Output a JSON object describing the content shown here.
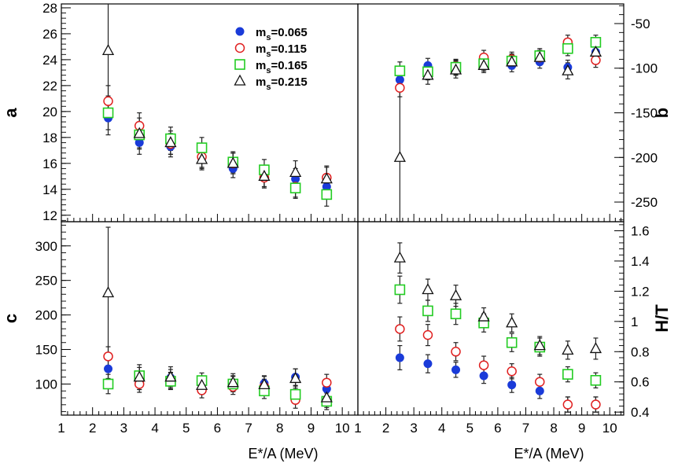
{
  "chart_data": [
    {
      "panel": "top-left",
      "type": "scatter",
      "ylabel": "a",
      "xlim": [
        1,
        10.5
      ],
      "ylim": [
        11.5,
        28.3
      ],
      "yticks": [
        12,
        14,
        16,
        18,
        20,
        22,
        24,
        26,
        28
      ],
      "yaxis_side": "left",
      "legend_position": "top-right",
      "x": [
        2.5,
        3.5,
        4.5,
        5.5,
        6.5,
        7.5,
        8.5,
        9.5
      ],
      "series": [
        {
          "name": "m_s=0.065",
          "label": "m",
          "sub": "s",
          "value": "=0.065",
          "marker": "filled-circle",
          "color": "#1a3bd9",
          "values": [
            19.5,
            17.6,
            17.3,
            16.4,
            15.6,
            14.9,
            14.8,
            14.2
          ],
          "errors": [
            1.3,
            0.9,
            0.8,
            0.8,
            0.7,
            0.7,
            0.8,
            0.8
          ]
        },
        {
          "name": "m_s=0.115",
          "label": "m",
          "sub": "s",
          "value": "=0.115",
          "marker": "open-circle",
          "color": "#e02020",
          "values": [
            20.8,
            18.9,
            17.5,
            16.5,
            16.0,
            14.9,
            14.2,
            14.9
          ],
          "errors": [
            1.2,
            1.0,
            0.8,
            0.8,
            0.8,
            0.8,
            0.8,
            0.9
          ]
        },
        {
          "name": "m_s=0.165",
          "label": "m",
          "sub": "s",
          "value": "=0.165",
          "marker": "open-square",
          "color": "#22cc22",
          "values": [
            19.9,
            18.2,
            17.9,
            17.2,
            16.1,
            15.5,
            14.1,
            13.6
          ],
          "errors": [
            1.3,
            1.0,
            0.9,
            0.8,
            0.8,
            0.8,
            0.8,
            0.9
          ]
        },
        {
          "name": "m_s=0.215",
          "label": "m",
          "sub": "s",
          "value": "=0.215",
          "marker": "open-triangle",
          "color": "#111111",
          "values": [
            24.7,
            18.3,
            17.6,
            16.3,
            16.0,
            15.0,
            15.3,
            14.8
          ],
          "errors": [
            3.6,
            1.2,
            0.9,
            0.8,
            0.8,
            0.8,
            0.9,
            0.9
          ]
        }
      ]
    },
    {
      "panel": "top-right",
      "type": "scatter",
      "ylabel": "b",
      "xlim": [
        1,
        10.5
      ],
      "ylim": [
        -272,
        -28
      ],
      "yticks": [
        -250,
        -200,
        -150,
        -100,
        -50
      ],
      "yaxis_side": "right",
      "x": [
        2.5,
        3.5,
        4.5,
        5.5,
        6.5,
        7.5,
        8.5,
        9.5
      ],
      "series": [
        {
          "name": "m_s=0.065",
          "marker": "filled-circle",
          "color": "#1a3bd9",
          "values": [
            -113,
            -97,
            -100,
            -95,
            -97,
            -93,
            -99,
            -82
          ],
          "errors": [
            10,
            8,
            8,
            8,
            7,
            7,
            8,
            8
          ]
        },
        {
          "name": "m_s=0.115",
          "marker": "open-circle",
          "color": "#e02020",
          "values": [
            -122,
            -105,
            -98,
            -88,
            -90,
            -88,
            -71,
            -91
          ],
          "errors": [
            10,
            8,
            8,
            8,
            8,
            8,
            8,
            8
          ]
        },
        {
          "name": "m_s=0.165",
          "marker": "open-square",
          "color": "#22cc22",
          "values": [
            -103,
            -104,
            -99,
            -95,
            -92,
            -86,
            -78,
            -71
          ],
          "errors": [
            10,
            9,
            8,
            8,
            8,
            8,
            8,
            8
          ]
        },
        {
          "name": "m_s=0.215",
          "marker": "open-triangle",
          "color": "#111111",
          "values": [
            -200,
            -108,
            -102,
            -97,
            -93,
            -88,
            -103,
            -82
          ],
          "errors": [
            75,
            10,
            9,
            8,
            8,
            8,
            9,
            9
          ]
        }
      ]
    },
    {
      "panel": "bottom-left",
      "type": "scatter",
      "ylabel": "c",
      "xlabel": "E*/A (MeV)",
      "xlim": [
        1,
        10.5
      ],
      "xticks": [
        1,
        2,
        3,
        4,
        5,
        6,
        7,
        8,
        9,
        10
      ],
      "ylim": [
        55,
        335
      ],
      "yticks": [
        100,
        150,
        200,
        250,
        300
      ],
      "yaxis_side": "left",
      "x": [
        2.5,
        3.5,
        4.5,
        5.5,
        6.5,
        7.5,
        8.5,
        9.5
      ],
      "series": [
        {
          "name": "m_s=0.065",
          "marker": "filled-circle",
          "color": "#1a3bd9",
          "values": [
            122,
            104,
            109,
            100,
            101,
            101,
            110,
            93
          ],
          "errors": [
            14,
            12,
            12,
            11,
            11,
            11,
            12,
            12
          ]
        },
        {
          "name": "m_s=0.115",
          "marker": "open-circle",
          "color": "#e02020",
          "values": [
            140,
            100,
            105,
            91,
            96,
            96,
            77,
            102
          ],
          "errors": [
            14,
            12,
            12,
            11,
            11,
            11,
            12,
            12
          ]
        },
        {
          "name": "m_s=0.165",
          "marker": "open-square",
          "color": "#22cc22",
          "values": [
            100,
            112,
            104,
            105,
            100,
            90,
            85,
            75
          ],
          "errors": [
            14,
            12,
            12,
            11,
            11,
            11,
            12,
            12
          ]
        },
        {
          "name": "m_s=0.215",
          "marker": "open-triangle",
          "color": "#111111",
          "values": [
            232,
            110,
            110,
            98,
            102,
            99,
            108,
            80
          ],
          "errors": [
            95,
            18,
            15,
            13,
            13,
            12,
            14,
            14
          ]
        }
      ]
    },
    {
      "panel": "bottom-right",
      "type": "scatter",
      "ylabel": "H/T",
      "xlabel": "E*/A (MeV)",
      "xlim": [
        1,
        10.5
      ],
      "xticks": [
        1,
        2,
        3,
        4,
        5,
        6,
        7,
        8,
        9,
        10
      ],
      "ylim": [
        0.38,
        1.66
      ],
      "yticks": [
        0.4,
        0.6,
        0.8,
        1.0,
        1.2,
        1.4,
        1.6
      ],
      "ytick_labels": [
        "0.4",
        "0.6",
        "0.8",
        "1",
        "1.2",
        "1.4",
        "1.6"
      ],
      "yaxis_side": "right",
      "x": [
        2.5,
        3.5,
        4.5,
        5.5,
        6.5,
        7.5,
        8.5,
        9.5
      ],
      "series": [
        {
          "name": "m_s=0.065",
          "marker": "filled-circle",
          "color": "#1a3bd9",
          "values": [
            0.76,
            0.72,
            0.68,
            0.64,
            0.58,
            0.54,
            0.45,
            0.45
          ],
          "errors": [
            0.08,
            0.06,
            0.05,
            0.05,
            0.05,
            0.05,
            0.05,
            0.05
          ]
        },
        {
          "name": "m_s=0.115",
          "marker": "open-circle",
          "color": "#e02020",
          "values": [
            0.95,
            0.91,
            0.8,
            0.71,
            0.67,
            0.6,
            0.45,
            0.45
          ],
          "errors": [
            0.08,
            0.07,
            0.06,
            0.06,
            0.05,
            0.05,
            0.05,
            0.05
          ]
        },
        {
          "name": "m_s=0.165",
          "marker": "open-square",
          "color": "#22cc22",
          "values": [
            1.21,
            1.07,
            1.05,
            0.99,
            0.86,
            0.83,
            0.65,
            0.61
          ],
          "errors": [
            0.09,
            0.07,
            0.07,
            0.06,
            0.06,
            0.06,
            0.05,
            0.05
          ]
        },
        {
          "name": "m_s=0.215",
          "marker": "open-triangle",
          "color": "#111111",
          "values": [
            1.42,
            1.21,
            1.17,
            1.03,
            0.99,
            0.84,
            0.81,
            0.82
          ],
          "errors": [
            0.1,
            0.07,
            0.07,
            0.06,
            0.06,
            0.06,
            0.06,
            0.07
          ]
        }
      ]
    }
  ]
}
